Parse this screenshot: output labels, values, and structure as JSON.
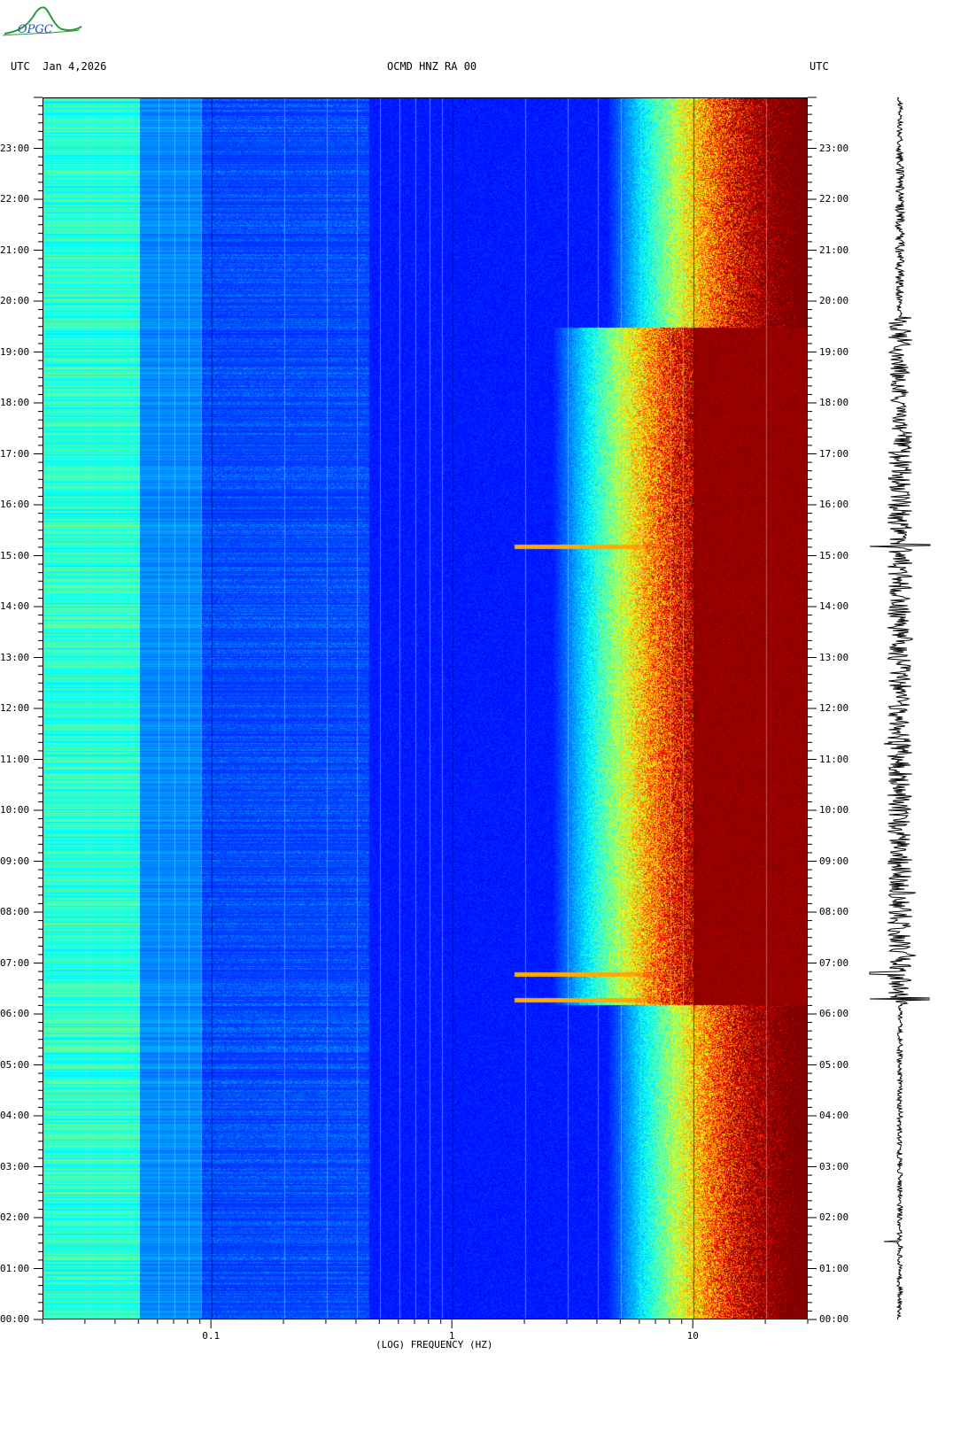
{
  "header": {
    "left_label": "UTC  Jan 4,2026",
    "center_label": "OCMD HNZ RA 00",
    "right_label": "UTC",
    "logo_text": "OPGC"
  },
  "chart_data": {
    "type": "heatmap",
    "title": "OCMD HNZ RA 00",
    "date": "Jan 4,2026",
    "xlabel": "(LOG) FREQUENCY (HZ)",
    "ylabel": "UTC",
    "x_scale": "log",
    "xlim": [
      0.02,
      30
    ],
    "x_ticks": [
      0.1,
      1,
      10
    ],
    "x_tick_labels": [
      "0.1",
      "1",
      "10"
    ],
    "ylim_hours": [
      0,
      24
    ],
    "y_tick_labels": [
      "00:00",
      "01:00",
      "02:00",
      "03:00",
      "04:00",
      "05:00",
      "06:00",
      "07:00",
      "08:00",
      "09:00",
      "10:00",
      "11:00",
      "12:00",
      "13:00",
      "14:00",
      "15:00",
      "16:00",
      "17:00",
      "18:00",
      "19:00",
      "20:00",
      "21:00",
      "22:00",
      "23:00"
    ],
    "colormap": [
      "#00007f",
      "#0000ff",
      "#00ffff",
      "#ffff00",
      "#ff0000",
      "#7f0000"
    ],
    "notable_events_utc": [
      6.3,
      6.8,
      15.2
    ],
    "high_noise_hours": [
      6.2,
      19.5
    ]
  }
}
